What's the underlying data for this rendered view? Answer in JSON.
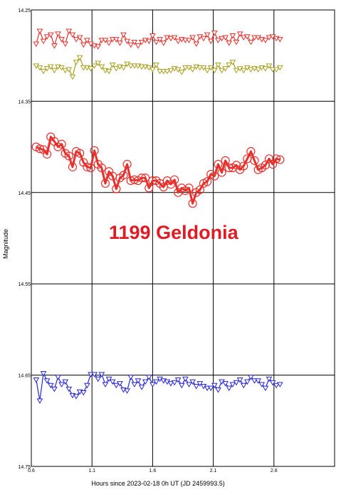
{
  "chart_data": {
    "type": "scatter",
    "title": "1199 Geldonia",
    "xlabel": "Hours since 2023-02-18 0h UT (JD 2459993.5)",
    "ylabel": "Magnitude",
    "xlim": [
      0.6,
      3.1
    ],
    "ylim": [
      14.25,
      14.75
    ],
    "y_reversed": true,
    "grid": true,
    "x_ticks": [
      "0.6",
      "1.1",
      "1.6",
      "2.1",
      "2.6"
    ],
    "x_tick_values": [
      0.6,
      1.1,
      1.6,
      2.1,
      2.6
    ],
    "y_ticks": [
      "14.25",
      "14.35",
      "14.45",
      "14.55",
      "14.65",
      "14.75"
    ],
    "y_tick_values": [
      14.25,
      14.35,
      14.45,
      14.55,
      14.65,
      14.75
    ],
    "title_color": "#e01b24",
    "series": [
      {
        "marker": "triangle-down",
        "color": "#e8302c",
        "x": [
          0.64,
          0.67,
          0.7,
          0.73,
          0.76,
          0.79,
          0.82,
          0.85,
          0.88,
          0.91,
          0.94,
          0.97,
          1.0,
          1.03,
          1.06,
          1.09,
          1.12,
          1.15,
          1.18,
          1.21,
          1.24,
          1.27,
          1.3,
          1.33,
          1.36,
          1.39,
          1.42,
          1.45,
          1.48,
          1.51,
          1.54,
          1.57,
          1.6,
          1.63,
          1.66,
          1.69,
          1.72,
          1.75,
          1.78,
          1.81,
          1.84,
          1.87,
          1.9,
          1.93,
          1.96,
          1.99,
          2.02,
          2.05,
          2.08,
          2.11,
          2.14,
          2.17,
          2.2,
          2.23,
          2.26,
          2.29,
          2.32,
          2.35,
          2.38,
          2.41,
          2.44,
          2.47,
          2.5,
          2.53,
          2.56,
          2.59,
          2.62,
          2.65
        ],
        "y": [
          14.287,
          14.273,
          14.284,
          14.279,
          14.277,
          14.289,
          14.276,
          14.282,
          14.287,
          14.273,
          14.277,
          14.282,
          14.28,
          14.288,
          14.283,
          14.287,
          14.289,
          14.29,
          14.283,
          14.283,
          14.286,
          14.282,
          14.282,
          14.286,
          14.277,
          14.284,
          14.288,
          14.285,
          14.289,
          14.285,
          14.283,
          14.284,
          14.278,
          14.285,
          14.282,
          14.286,
          14.28,
          14.281,
          14.28,
          14.284,
          14.282,
          14.283,
          14.283,
          14.28,
          14.287,
          14.279,
          14.281,
          14.277,
          14.284,
          14.275,
          14.283,
          14.281,
          14.28,
          14.286,
          14.278,
          14.285,
          14.276,
          14.28,
          14.279,
          14.285,
          14.28,
          14.28,
          14.282,
          14.283,
          14.28,
          14.279,
          14.281,
          14.282
        ]
      },
      {
        "marker": "triangle-down",
        "color": "#a8a020",
        "x": [
          0.64,
          0.67,
          0.7,
          0.73,
          0.76,
          0.79,
          0.82,
          0.85,
          0.88,
          0.91,
          0.94,
          0.97,
          1.0,
          1.03,
          1.06,
          1.09,
          1.12,
          1.15,
          1.18,
          1.21,
          1.24,
          1.27,
          1.3,
          1.33,
          1.36,
          1.39,
          1.42,
          1.45,
          1.48,
          1.51,
          1.54,
          1.57,
          1.6,
          1.63,
          1.66,
          1.69,
          1.72,
          1.75,
          1.78,
          1.81,
          1.84,
          1.87,
          1.9,
          1.93,
          1.96,
          1.99,
          2.02,
          2.05,
          2.08,
          2.11,
          2.14,
          2.17,
          2.2,
          2.23,
          2.26,
          2.29,
          2.32,
          2.35,
          2.38,
          2.41,
          2.44,
          2.47,
          2.5,
          2.53,
          2.56,
          2.59,
          2.62,
          2.65
        ],
        "y": [
          14.311,
          14.313,
          14.317,
          14.314,
          14.312,
          14.316,
          14.312,
          14.313,
          14.316,
          14.315,
          14.323,
          14.307,
          14.302,
          14.313,
          14.313,
          14.314,
          14.311,
          14.308,
          14.312,
          14.316,
          14.317,
          14.31,
          14.314,
          14.312,
          14.313,
          14.309,
          14.311,
          14.311,
          14.311,
          14.312,
          14.312,
          14.313,
          14.315,
          14.31,
          14.317,
          14.317,
          14.317,
          14.316,
          14.314,
          14.315,
          14.318,
          14.313,
          14.313,
          14.315,
          14.312,
          14.313,
          14.313,
          14.316,
          14.313,
          14.316,
          14.31,
          14.316,
          14.314,
          14.31,
          14.307,
          14.316,
          14.314,
          14.316,
          14.313,
          14.315,
          14.314,
          14.315,
          14.313,
          14.314,
          14.311,
          14.315,
          14.315,
          14.313
        ]
      },
      {
        "marker": "circle",
        "color": "#e8302c",
        "x": [
          0.64,
          0.67,
          0.7,
          0.73,
          0.76,
          0.79,
          0.82,
          0.85,
          0.88,
          0.91,
          0.94,
          0.97,
          1.0,
          1.03,
          1.06,
          1.09,
          1.12,
          1.15,
          1.18,
          1.21,
          1.24,
          1.27,
          1.3,
          1.33,
          1.36,
          1.39,
          1.42,
          1.45,
          1.48,
          1.51,
          1.54,
          1.57,
          1.6,
          1.63,
          1.66,
          1.69,
          1.72,
          1.75,
          1.78,
          1.81,
          1.84,
          1.87,
          1.9,
          1.93,
          1.96,
          1.99,
          2.02,
          2.05,
          2.08,
          2.11,
          2.14,
          2.17,
          2.2,
          2.23,
          2.26,
          2.29,
          2.32,
          2.35,
          2.38,
          2.41,
          2.44,
          2.47,
          2.5,
          2.53,
          2.56,
          2.59,
          2.62,
          2.65
        ],
        "y": [
          14.4,
          14.402,
          14.403,
          14.408,
          14.389,
          14.394,
          14.4,
          14.397,
          14.407,
          14.41,
          14.422,
          14.405,
          14.407,
          14.417,
          14.422,
          14.423,
          14.404,
          14.419,
          14.423,
          14.44,
          14.427,
          14.432,
          14.446,
          14.434,
          14.431,
          14.419,
          14.437,
          14.436,
          14.437,
          14.434,
          14.434,
          14.445,
          14.437,
          14.437,
          14.44,
          14.444,
          14.437,
          14.441,
          14.436,
          14.45,
          14.445,
          14.448,
          14.445,
          14.462,
          14.45,
          14.447,
          14.44,
          14.438,
          14.43,
          14.432,
          14.419,
          14.428,
          14.415,
          14.423,
          14.423,
          14.42,
          14.425,
          14.421,
          14.413,
          14.405,
          14.415,
          14.425,
          14.423,
          14.42,
          14.413,
          14.419,
          14.413,
          14.414
        ]
      },
      {
        "marker": "triangle-down",
        "color": "#2626d8",
        "x": [
          0.64,
          0.67,
          0.7,
          0.73,
          0.76,
          0.79,
          0.82,
          0.85,
          0.88,
          0.91,
          0.94,
          0.97,
          1.0,
          1.03,
          1.06,
          1.09,
          1.12,
          1.15,
          1.18,
          1.21,
          1.24,
          1.27,
          1.3,
          1.33,
          1.36,
          1.39,
          1.42,
          1.45,
          1.48,
          1.51,
          1.54,
          1.57,
          1.6,
          1.63,
          1.66,
          1.69,
          1.72,
          1.75,
          1.78,
          1.81,
          1.84,
          1.87,
          1.9,
          1.93,
          1.96,
          1.99,
          2.02,
          2.05,
          2.08,
          2.11,
          2.14,
          2.17,
          2.2,
          2.23,
          2.26,
          2.29,
          2.32,
          2.35,
          2.38,
          2.41,
          2.44,
          2.47,
          2.5,
          2.53,
          2.56,
          2.59,
          2.62,
          2.65
        ],
        "y": [
          14.655,
          14.678,
          14.648,
          14.656,
          14.661,
          14.665,
          14.652,
          14.66,
          14.657,
          14.665,
          14.672,
          14.673,
          14.668,
          14.669,
          14.661,
          14.649,
          14.649,
          14.654,
          14.649,
          14.66,
          14.654,
          14.657,
          14.661,
          14.659,
          14.666,
          14.667,
          14.652,
          14.66,
          14.656,
          14.663,
          14.657,
          14.652,
          14.66,
          14.657,
          14.654,
          14.656,
          14.657,
          14.659,
          14.658,
          14.655,
          14.661,
          14.654,
          14.66,
          14.657,
          14.662,
          14.659,
          14.662,
          14.664,
          14.664,
          14.661,
          14.666,
          14.657,
          14.659,
          14.664,
          14.66,
          14.658,
          14.655,
          14.661,
          14.657,
          14.652,
          14.656,
          14.656,
          14.66,
          14.664,
          14.654,
          14.658,
          14.661,
          14.66
        ]
      }
    ]
  }
}
